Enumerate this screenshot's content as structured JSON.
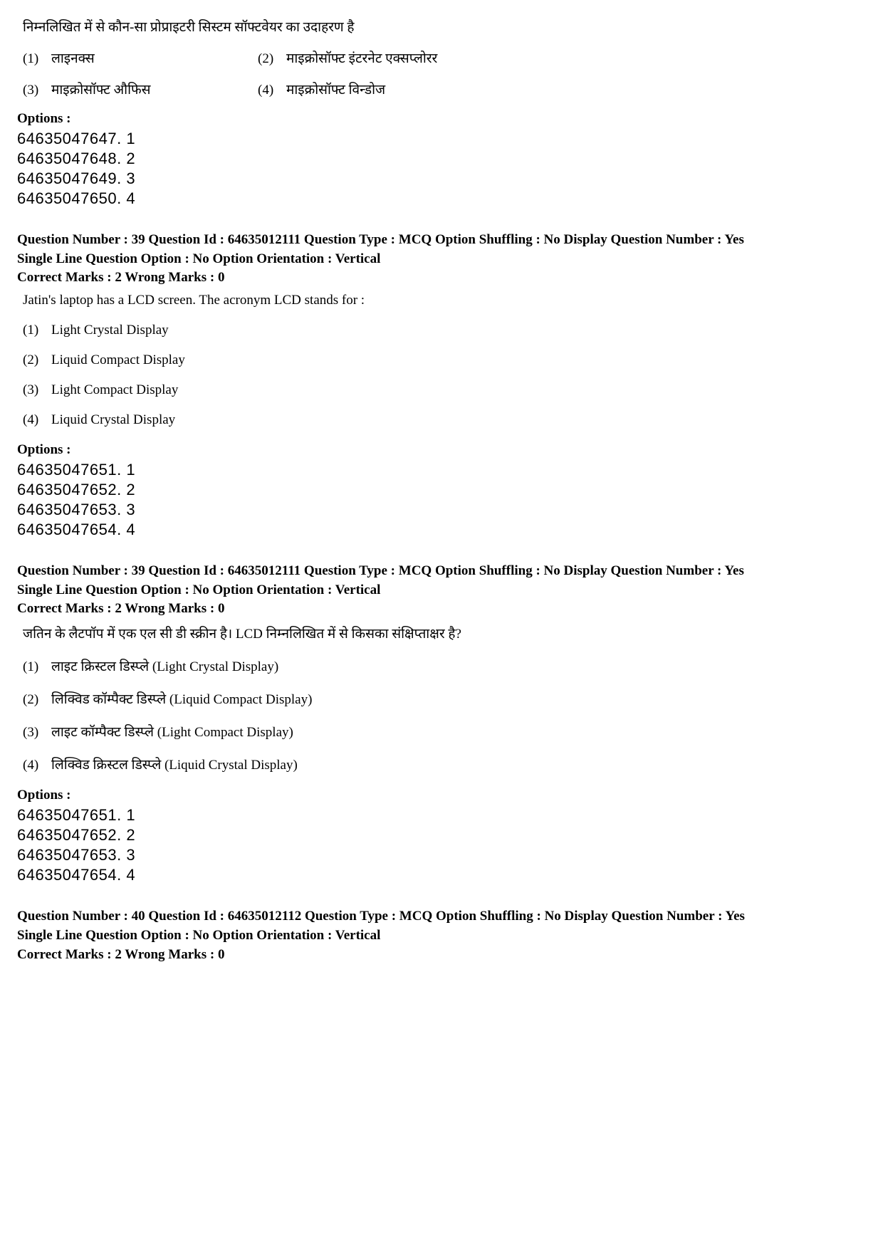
{
  "colors": {
    "text": "#000000",
    "background": "#ffffff"
  },
  "typography": {
    "body_family": "Times New Roman",
    "code_family": "Arial",
    "body_size_pt": 14,
    "code_size_pt": 16
  },
  "block1": {
    "stem": "निम्नलिखित में से कौन-सा प्रोप्राइटरी सिस्टम सॉफ्टवेयर का उदाहरण है",
    "answers": [
      {
        "n": "(1)",
        "text": "लाइनक्स"
      },
      {
        "n": "(2)",
        "text": "माइक्रोसॉफ्ट इंटरनेट एक्सप्लोरर"
      },
      {
        "n": "(3)",
        "text": "माइक्रोसॉफ्ट औफिस"
      },
      {
        "n": "(4)",
        "text": "माइक्रोसॉफ्ट विन्डोज"
      }
    ],
    "options_label": "Options :",
    "options": [
      "64635047647. 1",
      "64635047648. 2",
      "64635047649. 3",
      "64635047650. 4"
    ]
  },
  "block2": {
    "meta_line1": "Question Number : 39  Question Id : 64635012111  Question Type : MCQ  Option Shuffling : No  Display Question Number : Yes",
    "meta_line2": "Single Line Question Option : No  Option Orientation : Vertical",
    "marks_line": "Correct Marks : 2  Wrong Marks : 0",
    "stem": "Jatin's laptop has a LCD screen. The acronym LCD stands for :",
    "answers": [
      {
        "n": "(1)",
        "text": "Light Crystal Display"
      },
      {
        "n": "(2)",
        "text": "Liquid Compact Display"
      },
      {
        "n": "(3)",
        "text": "Light Compact Display"
      },
      {
        "n": "(4)",
        "text": "Liquid Crystal Display"
      }
    ],
    "options_label": "Options :",
    "options": [
      "64635047651. 1",
      "64635047652. 2",
      "64635047653. 3",
      "64635047654. 4"
    ]
  },
  "block3": {
    "meta_line1": "Question Number : 39  Question Id : 64635012111  Question Type : MCQ  Option Shuffling : No  Display Question Number : Yes",
    "meta_line2": "Single Line Question Option : No  Option Orientation : Vertical",
    "marks_line": "Correct Marks : 2  Wrong Marks : 0",
    "stem": "जतिन के लैटपॉप में एक एल सी डी स्क्रीन है। LCD निम्नलिखित में से किसका संक्षिप्ताक्षर है?",
    "answers": [
      {
        "n": "(1)",
        "text": "लाइट क्रिस्टल डिस्प्ले (Light Crystal Display)"
      },
      {
        "n": "(2)",
        "text": "लिक्विड कॉम्पैक्ट डिस्प्ले (Liquid Compact Display)"
      },
      {
        "n": "(3)",
        "text": "लाइट कॉम्पैक्ट डिस्प्ले (Light Compact Display)"
      },
      {
        "n": "(4)",
        "text": "लिक्विड क्रिस्टल डिस्प्ले (Liquid Crystal Display)"
      }
    ],
    "options_label": "Options :",
    "options": [
      "64635047651. 1",
      "64635047652. 2",
      "64635047653. 3",
      "64635047654. 4"
    ]
  },
  "block4": {
    "meta_line1": "Question Number : 40  Question Id : 64635012112  Question Type : MCQ  Option Shuffling : No  Display Question Number : Yes",
    "meta_line2": "Single Line Question Option : No  Option Orientation : Vertical",
    "marks_line": "Correct Marks : 2  Wrong Marks : 0"
  }
}
